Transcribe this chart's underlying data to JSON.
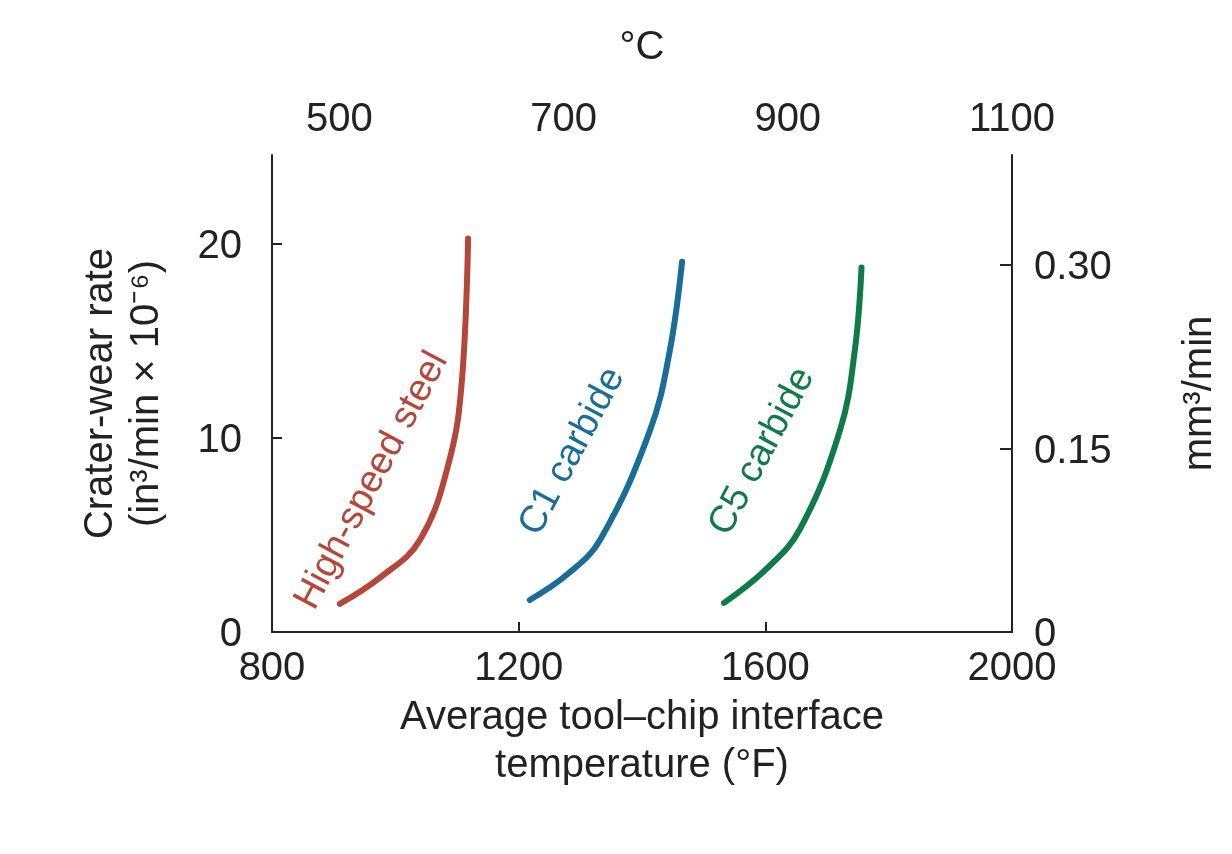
{
  "chart_data": {
    "type": "line",
    "xlabel": "Average tool–chip interface\ntemperature (°F)",
    "ylabel": "Crater-wear rate\n(in³/min × 10⁻⁶)",
    "y2label": "mm³/min",
    "x2label": "°C",
    "xlim": [
      800,
      2000
    ],
    "xticks": [
      800,
      1200,
      1600,
      2000
    ],
    "ylim": [
      0,
      24.6
    ],
    "yticks": [
      0,
      10,
      20
    ],
    "y2lim": [
      0,
      0.39
    ],
    "y2ticks": [
      0,
      0.15,
      {
        "value": 0.3,
        "label": "0.30"
      }
    ],
    "x2lim": [
      440,
      1100
    ],
    "x2ticks": [
      500,
      700,
      900,
      1100
    ],
    "grid": false,
    "legend": false,
    "marker": "none",
    "line_style": "solid",
    "series": [
      {
        "name": "High-speed steel",
        "color": "#b5473a",
        "x": [
          910,
          975,
          1040,
          1088,
          1108,
          1118
        ],
        "values": [
          1.45,
          2.8,
          4.75,
          8.9,
          13,
          20.3
        ]
      },
      {
        "name": "C1 carbide",
        "color": "#1a6e96",
        "x": [
          1218,
          1280,
          1332,
          1413,
          1445,
          1465
        ],
        "values": [
          1.65,
          3,
          4.75,
          10.4,
          14.5,
          19.1
        ]
      },
      {
        "name": "C5 carbide",
        "color": "#0f7a4a",
        "x": [
          1533,
          1600,
          1656,
          1721,
          1745,
          1756
        ],
        "values": [
          1.5,
          3.2,
          5.3,
          10.4,
          14.5,
          18.8
        ]
      }
    ]
  }
}
